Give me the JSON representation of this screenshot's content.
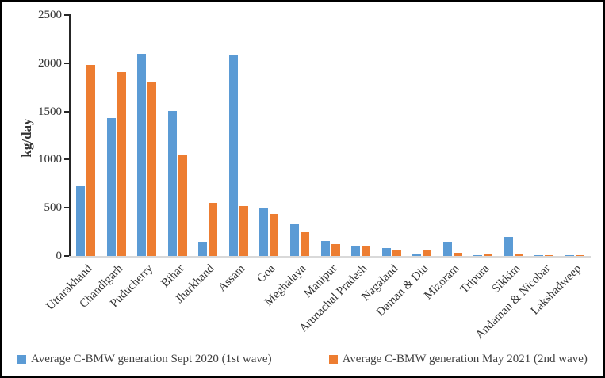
{
  "chart_data": {
    "type": "bar",
    "title": "",
    "xlabel": "",
    "ylabel": "kg/day",
    "ylim": [
      0,
      2500
    ],
    "yticks": [
      0,
      500,
      1000,
      1500,
      2000,
      2500
    ],
    "grid": false,
    "legend_position": "bottom",
    "categories": [
      "Uttarakhand",
      "Chandigarh",
      "Puducherry",
      "Bihar",
      "Jharkhand",
      "Assam",
      "Goa",
      "Meghalaya",
      "Manipur",
      "Arunachal Pradesh",
      "Nagaland",
      "Daman & Diu",
      "Mizoram",
      "Tripura",
      "Sikkim",
      "Andaman & Nicobar",
      "Lakshadweep"
    ],
    "series": [
      {
        "name": "Average C-BMW generation Sept 2020 (1st wave)",
        "color": "#5B9BD5",
        "values": [
          720,
          1430,
          2100,
          1505,
          150,
          2085,
          490,
          325,
          160,
          110,
          85,
          15,
          140,
          10,
          195,
          12,
          5
        ]
      },
      {
        "name": "Average C-BMW generation May 2021 (2nd wave)",
        "color": "#ED7D31",
        "values": [
          1980,
          1910,
          1805,
          1050,
          550,
          515,
          440,
          245,
          120,
          110,
          60,
          65,
          30,
          20,
          15,
          12,
          5
        ]
      }
    ]
  }
}
